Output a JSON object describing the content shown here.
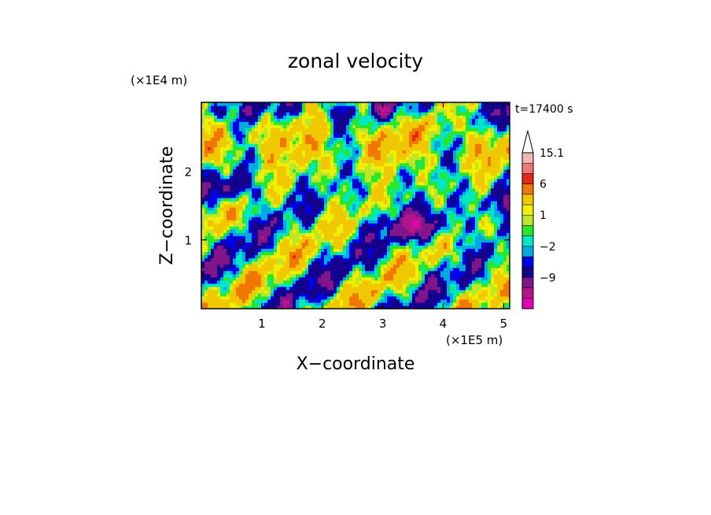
{
  "chart_data": {
    "type": "heatmap",
    "title": "zonal velocity",
    "xlabel": "X−coordinate",
    "ylabel": "Z−coordinate",
    "x_unit": "(×1E5 m)",
    "y_unit": "(×1E4 m)",
    "time_label": "t=17400 s",
    "xlim": [
      0,
      5.1
    ],
    "ylim": [
      0,
      3.0
    ],
    "x_ticks": [
      {
        "value": 1,
        "label": "1"
      },
      {
        "value": 2,
        "label": "2"
      },
      {
        "value": 3,
        "label": "3"
      },
      {
        "value": 4,
        "label": "4"
      },
      {
        "value": 5,
        "label": "5"
      }
    ],
    "y_ticks": [
      {
        "value": 1,
        "label": "1"
      },
      {
        "value": 2,
        "label": "2"
      }
    ],
    "colorbar": {
      "levels": [
        -15,
        -12,
        -9,
        -6,
        -3,
        -2,
        -1,
        0,
        1,
        2,
        3,
        6,
        9,
        12,
        15.1
      ],
      "colors": [
        "#e600b4",
        "#b4148c",
        "#82148c",
        "#14008c",
        "#0000e6",
        "#00aadc",
        "#00e6c8",
        "#28e628",
        "#bee628",
        "#f0f000",
        "#f0c800",
        "#f07800",
        "#e62814",
        "#f07878",
        "#f5b4b4"
      ],
      "tick_labels": [
        {
          "value": 15.1,
          "label": "15.1"
        },
        {
          "value": 6,
          "label": "6"
        },
        {
          "value": 1,
          "label": "1"
        },
        {
          "value": -2,
          "label": "−2"
        },
        {
          "value": -9,
          "label": "−9"
        }
      ]
    }
  }
}
